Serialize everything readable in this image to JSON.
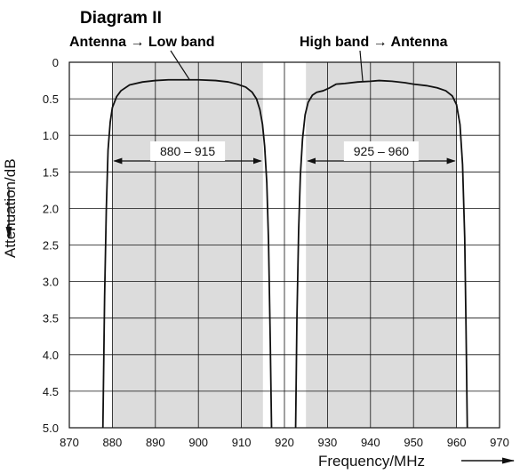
{
  "chart_data": {
    "type": "line",
    "title": "Diagram II",
    "xlabel": "Frequency/MHz",
    "ylabel": "Attenuation/dB",
    "xlim": [
      870,
      970
    ],
    "ylim": [
      0,
      5.0
    ],
    "y_inverted": true,
    "x_ticks": [
      "870",
      "880",
      "890",
      "900",
      "910",
      "920",
      "930",
      "940",
      "950",
      "960",
      "970"
    ],
    "y_ticks": [
      "0",
      "0.5",
      "1.0",
      "1.5",
      "2.0",
      "2.5",
      "3.0",
      "3.5",
      "4.0",
      "4.5",
      "5.0"
    ],
    "grid": true,
    "shaded_bands": [
      {
        "x": [
          880,
          915
        ],
        "label": "880 – 915"
      },
      {
        "x": [
          925,
          960
        ],
        "label": "925 – 960"
      }
    ],
    "series": [
      {
        "name": "Antenna → Low band",
        "x": [
          877.8,
          878.2,
          878.6,
          879.0,
          879.5,
          880.0,
          881.0,
          882.0,
          884.0,
          887.0,
          890.0,
          893.0,
          896.0,
          900.0,
          904.0,
          907.0,
          909.0,
          911.0,
          912.5,
          913.5,
          914.3,
          914.9,
          915.4,
          915.9,
          916.3,
          916.7,
          917.0
        ],
        "y": [
          5.0,
          3.2,
          2.0,
          1.2,
          0.82,
          0.62,
          0.47,
          0.39,
          0.31,
          0.27,
          0.25,
          0.24,
          0.24,
          0.24,
          0.25,
          0.27,
          0.3,
          0.34,
          0.41,
          0.5,
          0.65,
          0.85,
          1.15,
          1.65,
          2.45,
          3.8,
          5.0
        ]
      },
      {
        "name": "High band → Antenna",
        "x": [
          922.6,
          922.9,
          923.3,
          923.7,
          924.2,
          924.8,
          925.5,
          926.5,
          927.5,
          929.0,
          930.5,
          932.0,
          934.0,
          937.0,
          940.0,
          942.0,
          945.0,
          948.0,
          950.0,
          953.0,
          955.5,
          957.5,
          959.0,
          960.0,
          960.8,
          961.4,
          961.9,
          962.2,
          962.5
        ],
        "y": [
          5.0,
          3.5,
          2.3,
          1.55,
          1.05,
          0.72,
          0.55,
          0.45,
          0.41,
          0.39,
          0.35,
          0.3,
          0.29,
          0.27,
          0.26,
          0.25,
          0.26,
          0.28,
          0.3,
          0.32,
          0.35,
          0.39,
          0.46,
          0.58,
          0.85,
          1.4,
          2.4,
          3.6,
          5.0
        ]
      }
    ]
  }
}
